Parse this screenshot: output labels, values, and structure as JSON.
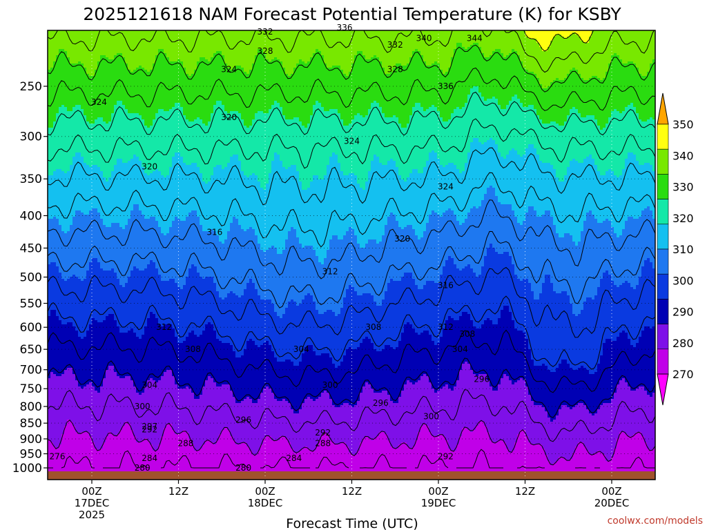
{
  "chart_data": {
    "type": "heatmap",
    "title": "2025121618 NAM Forecast Potential Temperature (K) for KSBY",
    "xlabel": "Forecast Time (UTC)",
    "ylabel": "",
    "credit": "coolwx.com/models",
    "y_scale": "log",
    "y_inverted": true,
    "ylim": [
      1000,
      200
    ],
    "y_ticks": [
      250,
      300,
      350,
      400,
      450,
      500,
      550,
      600,
      650,
      700,
      750,
      800,
      850,
      900,
      950,
      1000
    ],
    "x_ticks": [
      {
        "lines": [
          "00Z",
          "17DEC",
          "2025"
        ]
      },
      {
        "lines": [
          "12Z"
        ]
      },
      {
        "lines": [
          "00Z",
          "18DEC"
        ]
      },
      {
        "lines": [
          "12Z"
        ]
      },
      {
        "lines": [
          "00Z",
          "19DEC"
        ]
      },
      {
        "lines": [
          "12Z"
        ]
      },
      {
        "lines": [
          "00Z",
          "20DEC"
        ]
      }
    ],
    "grid": true,
    "colorbar": {
      "levels": [
        270,
        280,
        290,
        300,
        310,
        320,
        330,
        340,
        350
      ],
      "colors": [
        "#ff00ff",
        "#c000e8",
        "#7e10e8",
        "#0000b4",
        "#0a3ae0",
        "#1e78f0",
        "#14c0f0",
        "#14e8a8",
        "#2adc10",
        "#78e800",
        "#ffff10",
        "#ffa500"
      ],
      "position": "right"
    },
    "contour_labels": [
      {
        "text": "276",
        "time_h": -9,
        "p": 960
      },
      {
        "text": "280",
        "time_h": 7,
        "p": 1000
      },
      {
        "text": "284",
        "time_h": 8,
        "p": 965
      },
      {
        "text": "288",
        "time_h": 13,
        "p": 915
      },
      {
        "text": "292",
        "time_h": 8,
        "p": 870
      },
      {
        "text": "297",
        "time_h": 8,
        "p": 860
      },
      {
        "text": "300",
        "time_h": 7,
        "p": 800
      },
      {
        "text": "304",
        "time_h": 8,
        "p": 740
      },
      {
        "text": "308",
        "time_h": 14,
        "p": 650
      },
      {
        "text": "312",
        "time_h": 10,
        "p": 600
      },
      {
        "text": "316",
        "time_h": 17,
        "p": 425
      },
      {
        "text": "320",
        "time_h": 8,
        "p": 335
      },
      {
        "text": "324",
        "time_h": 1,
        "p": 265
      },
      {
        "text": "320",
        "time_h": 19,
        "p": 280
      },
      {
        "text": "324",
        "time_h": 19,
        "p": 235
      },
      {
        "text": "328",
        "time_h": 24,
        "p": 220
      },
      {
        "text": "332",
        "time_h": 24,
        "p": 205
      },
      {
        "text": "336",
        "time_h": 35,
        "p": 202
      },
      {
        "text": "332",
        "time_h": 42,
        "p": 215
      },
      {
        "text": "328",
        "time_h": 42,
        "p": 235
      },
      {
        "text": "340",
        "time_h": 46,
        "p": 210
      },
      {
        "text": "344",
        "time_h": 53,
        "p": 210
      },
      {
        "text": "336",
        "time_h": 49,
        "p": 250
      },
      {
        "text": "324",
        "time_h": 36,
        "p": 305
      },
      {
        "text": "324",
        "time_h": 49,
        "p": 360
      },
      {
        "text": "320",
        "time_h": 43,
        "p": 435
      },
      {
        "text": "312",
        "time_h": 33,
        "p": 490
      },
      {
        "text": "316",
        "time_h": 49,
        "p": 515
      },
      {
        "text": "308",
        "time_h": 39,
        "p": 600
      },
      {
        "text": "312",
        "time_h": 49,
        "p": 600
      },
      {
        "text": "308",
        "time_h": 52,
        "p": 615
      },
      {
        "text": "304",
        "time_h": 29,
        "p": 650
      },
      {
        "text": "304",
        "time_h": 51,
        "p": 650
      },
      {
        "text": "300",
        "time_h": 33,
        "p": 740
      },
      {
        "text": "296",
        "time_h": 40,
        "p": 790
      },
      {
        "text": "296",
        "time_h": 54,
        "p": 725
      },
      {
        "text": "300",
        "time_h": 47,
        "p": 830
      },
      {
        "text": "296",
        "time_h": 21,
        "p": 840
      },
      {
        "text": "292",
        "time_h": 32,
        "p": 880
      },
      {
        "text": "288",
        "time_h": 32,
        "p": 915
      },
      {
        "text": "284",
        "time_h": 28,
        "p": 965
      },
      {
        "text": "292",
        "time_h": 49,
        "p": 960
      },
      {
        "text": "280",
        "time_h": 21,
        "p": 1005
      }
    ]
  }
}
